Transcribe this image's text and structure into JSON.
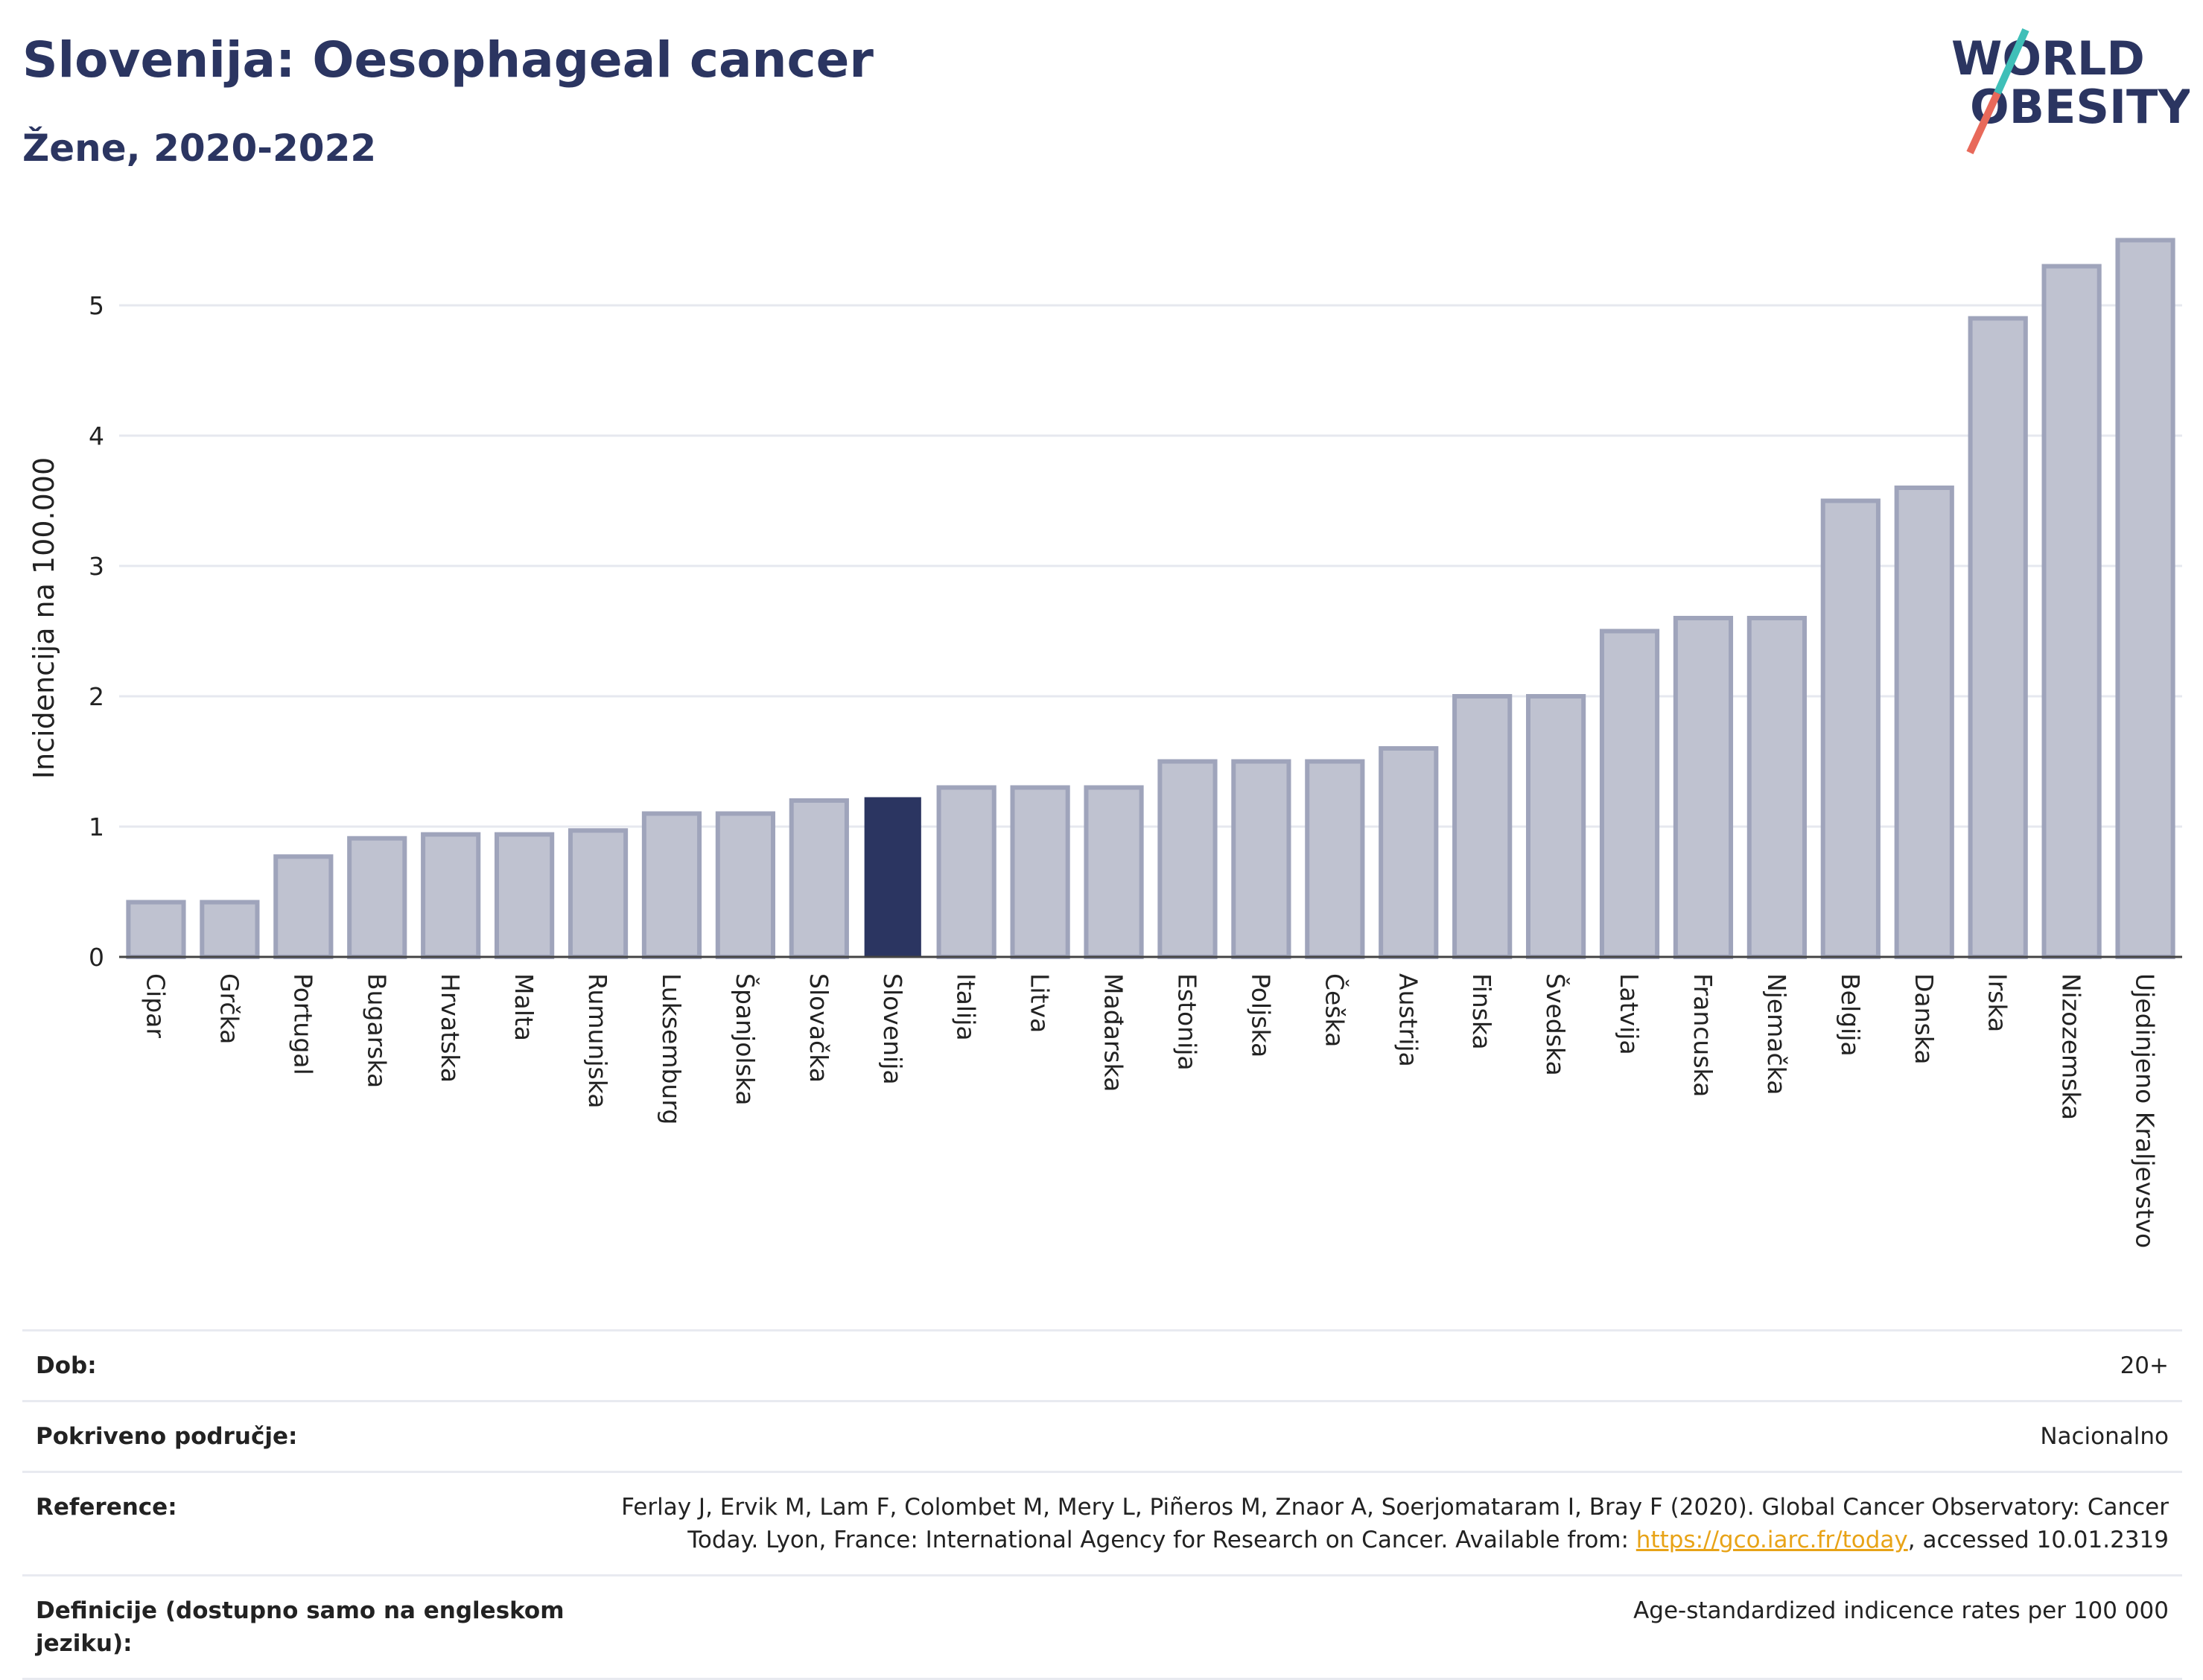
{
  "header": {
    "title": "Slovenija: Oesophageal cancer",
    "subtitle": "Žene, 2020-2022"
  },
  "logo": {
    "line1": "WORLD",
    "line2": "OBESITY",
    "colors": {
      "text": "#2b3561",
      "slash_teal": "#3fbfb8",
      "slash_coral": "#e8695a"
    }
  },
  "colors": {
    "bar_default": "#bfc2d0",
    "bar_default_stroke": "#9fa4bb",
    "bar_highlight": "#2b3561",
    "grid": "#e6e8ef",
    "axis": "#444444"
  },
  "chart_data": {
    "type": "bar",
    "title": "",
    "xlabel": "",
    "ylabel": "Incidencija na 100.000",
    "ylim": [
      0,
      5.6
    ],
    "yticks": [
      0,
      1,
      2,
      3,
      4,
      5
    ],
    "grid": true,
    "highlight": "Slovenija",
    "categories": [
      "Cipar",
      "Grčka",
      "Portugal",
      "Bugarska",
      "Hrvatska",
      "Malta",
      "Rumunjska",
      "Luksemburg",
      "Španjolska",
      "Slovačka",
      "Slovenija",
      "Italija",
      "Litva",
      "Mađarska",
      "Estonija",
      "Poljska",
      "Češka",
      "Austrija",
      "Finska",
      "Švedska",
      "Latvija",
      "Francuska",
      "Njemačka",
      "Belgija",
      "Danska",
      "Irska",
      "Nizozemska",
      "Ujedinjeno Kraljevstvo"
    ],
    "values": [
      0.42,
      0.42,
      0.77,
      0.91,
      0.94,
      0.94,
      0.97,
      1.1,
      1.1,
      1.2,
      1.22,
      1.3,
      1.3,
      1.3,
      1.5,
      1.5,
      1.5,
      1.6,
      2.0,
      2.0,
      2.5,
      2.6,
      2.6,
      3.5,
      3.6,
      4.9,
      5.3,
      5.5
    ]
  },
  "info": {
    "rows": [
      {
        "label": "Dob:",
        "value": "20+"
      },
      {
        "label": "Pokriveno područje:",
        "value": "Nacionalno"
      },
      {
        "label": "Reference:",
        "value_pre": "Ferlay J, Ervik M, Lam F, Colombet M, Mery L, Piñeros M, Znaor A, Soerjomataram I, Bray F (2020). Global Cancer Observatory: Cancer Today. Lyon, France: International Agency for Research on Cancer. Available from: ",
        "link": "https://gco.iarc.fr/today",
        "value_post": ", accessed 10.01.2319"
      },
      {
        "label": "Definicije (dostupno samo na engleskom jeziku):",
        "value": "Age-standardized indicence rates per 100 000"
      }
    ]
  }
}
